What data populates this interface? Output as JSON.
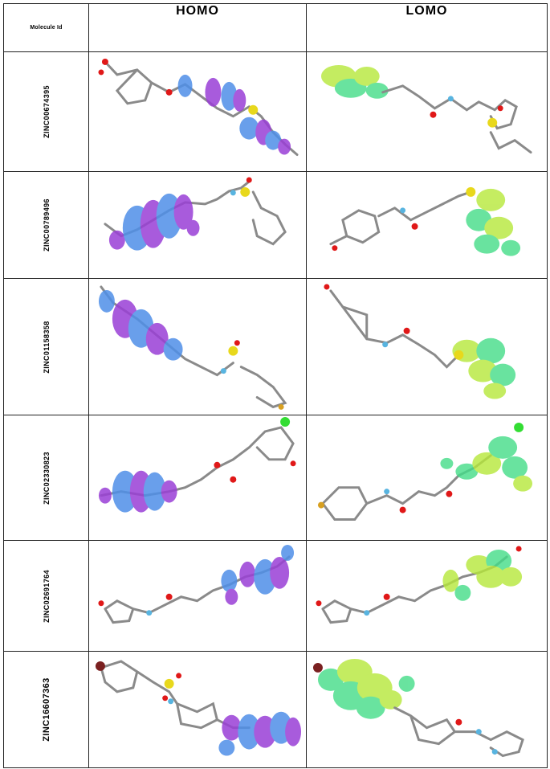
{
  "table": {
    "header": {
      "id_label": "Molecule Id",
      "homo_label": "HOMO",
      "lumo_label": "LOMO"
    },
    "rows": [
      {
        "molecule_id": "ZINC00674395"
      },
      {
        "molecule_id": "ZINC00789496"
      },
      {
        "molecule_id": "ZINC01158358"
      },
      {
        "molecule_id": "ZINC02330823"
      },
      {
        "molecule_id": "ZINC02691764"
      },
      {
        "molecule_id": "ZINC16607363"
      }
    ]
  },
  "colors": {
    "homo_lobe_blue": "#4f8fe8",
    "homo_lobe_purple": "#9a3fd6",
    "lumo_lobe_green": "#44dd88",
    "lumo_lobe_yellow": "#b6e83a",
    "bond": "#8a8a8a",
    "oxygen": "#e01818",
    "nitrogen": "#58b4e0",
    "sulfur": "#e8d81c",
    "chlorine": "#33dd33",
    "fluorine": "#d8a020",
    "bromine": "#7a2020"
  }
}
